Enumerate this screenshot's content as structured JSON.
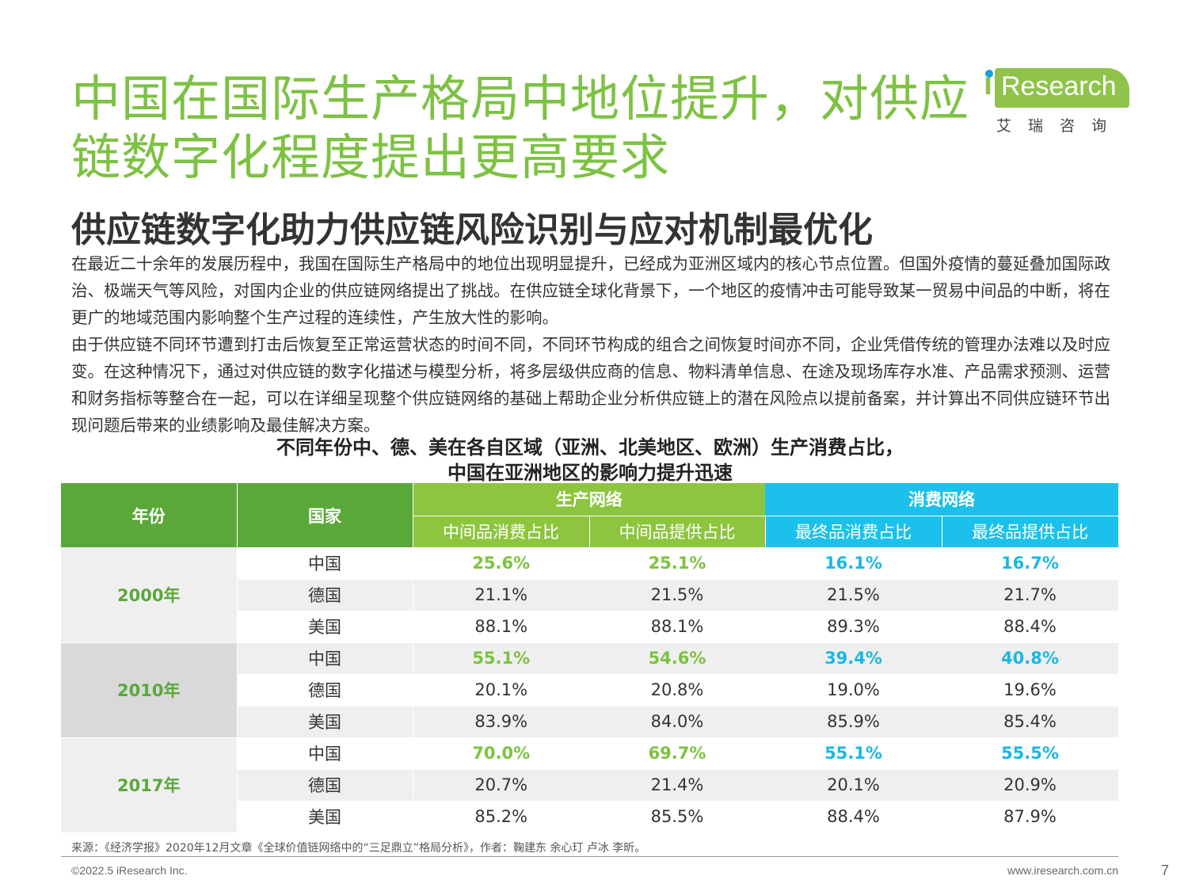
{
  "title": "中国在国际生产格局中地位提升，对供应链数字化程度提出更高要求",
  "logo": {
    "mark": "i",
    "word": "Research",
    "cn": "艾瑞咨询"
  },
  "subtitle": "供应链数字化助力供应链风险识别与应对机制最优化",
  "paragraphs": [
    "在最近二十余年的发展历程中，我国在国际生产格局中的地位出现明显提升，已经成为亚洲区域内的核心节点位置。但国外疫情的蔓延叠加国际政治、极端天气等风险，对国内企业的供应链网络提出了挑战。在供应链全球化背景下，一个地区的疫情冲击可能导致某一贸易中间品的中断，将在更广的地域范围内影响整个生产过程的连续性，产生放大性的影响。",
    "由于供应链不同环节遭到打击后恢复至正常运营状态的时间不同，不同环节构成的组合之间恢复时间亦不同，企业凭借传统的管理办法难以及时应变。在这种情况下，通过对供应链的数字化描述与模型分析，将多层级供应商的信息、物料清单信息、在途及现场库存水准、产品需求预测、运营和财务指标等整合在一起，可以在详细呈现整个供应链网络的基础上帮助企业分析供应链上的潜在风险点以提前备案，并计算出不同供应链环节出现问题后带来的业绩影响及最佳解决方案。"
  ],
  "table": {
    "title_line1": "不同年份中、德、美在各自区域（亚洲、北美地区、欧洲）生产消费占比，",
    "title_line2": "中国在亚洲地区的影响力提升迅速",
    "headers": {
      "year": "年份",
      "country": "国家",
      "production": "生产网络",
      "consumption": "消费网络",
      "sub": [
        "中间品消费占比",
        "中间品提供占比",
        "最终品消费占比",
        "最终品提供占比"
      ]
    },
    "groups": [
      {
        "year": "2000年",
        "rows": [
          {
            "country": "中国",
            "values": [
              "25.6%",
              "25.1%",
              "16.1%",
              "16.7%"
            ]
          },
          {
            "country": "德国",
            "values": [
              "21.1%",
              "21.5%",
              "21.5%",
              "21.7%"
            ]
          },
          {
            "country": "美国",
            "values": [
              "88.1%",
              "88.1%",
              "89.3%",
              "88.4%"
            ]
          }
        ]
      },
      {
        "year": "2010年",
        "rows": [
          {
            "country": "中国",
            "values": [
              "55.1%",
              "54.6%",
              "39.4%",
              "40.8%"
            ]
          },
          {
            "country": "德国",
            "values": [
              "20.1%",
              "20.8%",
              "19.0%",
              "19.6%"
            ]
          },
          {
            "country": "美国",
            "values": [
              "83.9%",
              "84.0%",
              "85.9%",
              "85.4%"
            ]
          }
        ]
      },
      {
        "year": "2017年",
        "rows": [
          {
            "country": "中国",
            "values": [
              "70.0%",
              "69.7%",
              "55.1%",
              "55.5%"
            ]
          },
          {
            "country": "德国",
            "values": [
              "20.7%",
              "21.4%",
              "20.1%",
              "20.9%"
            ]
          },
          {
            "country": "美国",
            "values": [
              "85.2%",
              "85.5%",
              "88.4%",
              "87.9%"
            ]
          }
        ]
      }
    ]
  },
  "source": "来源：《经济学报》2020年12月文章《全球价值链网络中的“三足鼎立”格局分析》，作者：鞠建东 余心玎 卢冰 李昕。",
  "footer": {
    "copyright": "©2022.5 iResearch Inc.",
    "website": "www.iresearch.com.cn",
    "page": "7"
  },
  "colors": {
    "green": "#7dc242",
    "dark_green": "#5aa83a",
    "blue": "#1bc1ea"
  }
}
